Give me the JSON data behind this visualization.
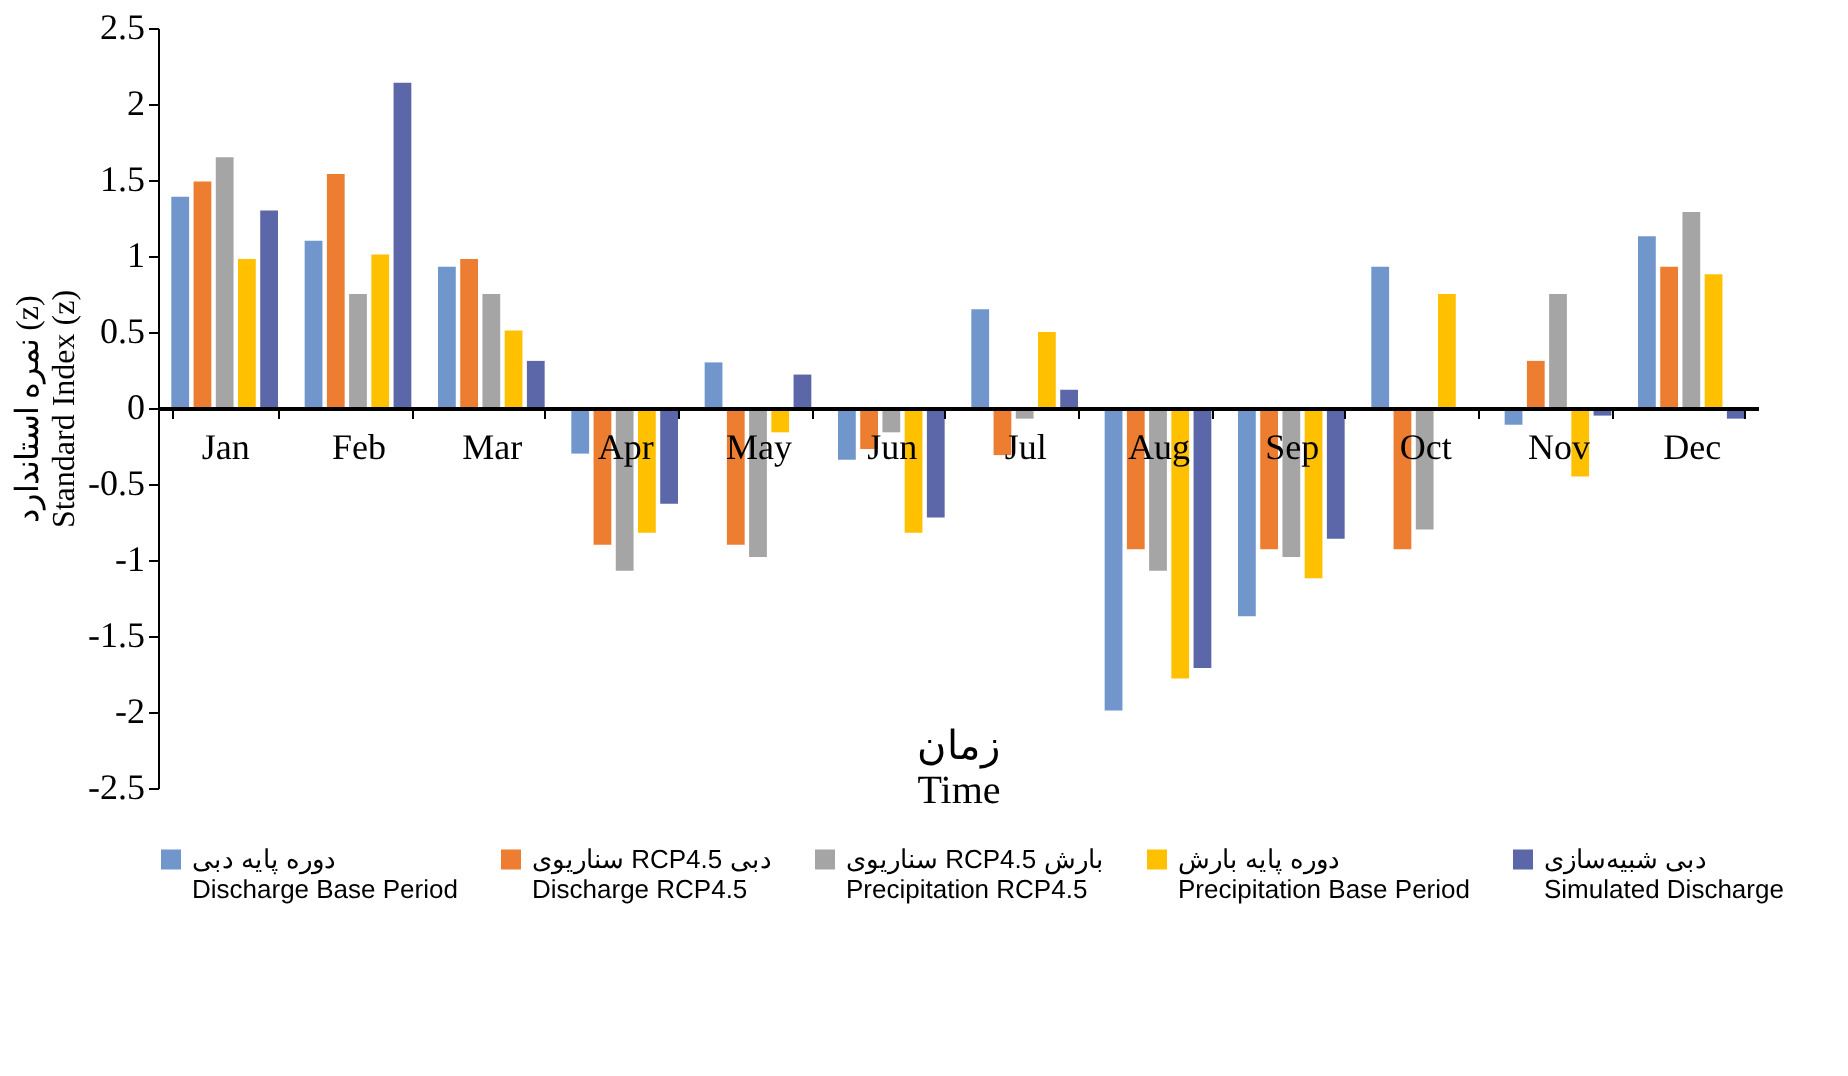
{
  "chart_data": {
    "type": "bar",
    "xlabel": "زمان\nTime",
    "ylabel": "نمره استاندارد (z)\nStandard Index (z)",
    "categories": [
      "Jan",
      "Feb",
      "Mar",
      "Apr",
      "May",
      "Jun",
      "Jul",
      "Aug",
      "Sep",
      "Oct",
      "Nov",
      "Dec"
    ],
    "series": [
      {
        "name": "دوره پایه دبی\nDischarge Base Period",
        "color": "#7096cc",
        "values": [
          1.39,
          1.1,
          0.93,
          -0.3,
          0.3,
          -0.34,
          0.65,
          -1.99,
          -1.37,
          0.93,
          -0.11,
          1.13
        ]
      },
      {
        "name": "سناریوی RCP4.5 دبی\nDischarge RCP4.5",
        "color": "#ed7d31",
        "values": [
          1.49,
          1.54,
          0.98,
          -0.9,
          -0.9,
          -0.27,
          -0.31,
          -0.93,
          -0.93,
          -0.93,
          0.31,
          0.93
        ]
      },
      {
        "name": "سناریوی RCP4.5 بارش\nPrecipitation RCP4.5",
        "color": "#a5a5a5",
        "values": [
          1.65,
          0.75,
          0.75,
          -1.07,
          -0.98,
          -0.16,
          -0.07,
          -1.07,
          -0.98,
          -0.8,
          0.75,
          1.29
        ]
      },
      {
        "name": "دوره پایه بارش\nPrecipitation Base Period",
        "color": "#ffc000",
        "values": [
          0.98,
          1.01,
          0.51,
          -0.82,
          -0.16,
          -0.82,
          0.5,
          -1.78,
          -1.12,
          0.75,
          -0.45,
          0.88
        ]
      },
      {
        "name": "دبی شبیه‌سازی\nSimulated Discharge",
        "color": "#5b67a8",
        "values": [
          1.3,
          2.14,
          0.31,
          -0.63,
          0.22,
          -0.72,
          0.12,
          -1.71,
          -0.86,
          0,
          -0.05,
          -0.07
        ]
      }
    ],
    "ylim": [
      -2.5,
      2.5
    ],
    "yticks": [
      -2.5,
      -2,
      -1.5,
      -1,
      -0.5,
      0,
      0.5,
      1,
      1.5,
      2,
      2.5
    ],
    "grid": false,
    "legend": "bottom"
  }
}
